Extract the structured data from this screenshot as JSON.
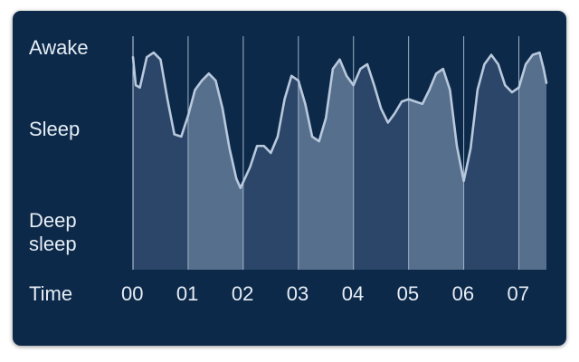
{
  "chart_data": {
    "type": "area",
    "x_label": "Time",
    "x": [
      0,
      0.05,
      0.125,
      0.25,
      0.375,
      0.5,
      0.625,
      0.75,
      0.875,
      1,
      1.125,
      1.25,
      1.375,
      1.5,
      1.625,
      1.75,
      1.875,
      1.95,
      2.125,
      2.25,
      2.375,
      2.5,
      2.625,
      2.75,
      2.875,
      3,
      3.125,
      3.25,
      3.375,
      3.5,
      3.625,
      3.75,
      3.875,
      4,
      4.125,
      4.25,
      4.375,
      4.5,
      4.625,
      4.75,
      4.875,
      5,
      5.125,
      5.25,
      5.375,
      5.5,
      5.625,
      5.75,
      5.875,
      6,
      6.125,
      6.25,
      6.375,
      6.5,
      6.625,
      6.75,
      6.875,
      7,
      7.125,
      7.25,
      7.375,
      7.45,
      7.5
    ],
    "values": [
      91,
      79,
      78,
      91,
      93,
      90,
      73,
      58,
      57,
      66,
      77,
      81,
      84,
      81,
      69,
      52,
      39,
      35,
      44,
      53,
      53,
      50,
      57,
      73,
      83,
      81,
      71,
      57,
      55,
      65,
      86,
      90,
      83,
      79,
      86,
      88,
      79,
      69,
      63,
      67,
      72,
      73,
      72,
      71,
      77,
      84,
      86,
      77,
      53,
      38,
      52,
      77,
      88,
      92,
      88,
      79,
      76,
      78,
      88,
      92,
      93,
      86,
      80
    ],
    "color": "#b9c9dd",
    "xlim": [
      0,
      7.5
    ],
    "xticks": [
      {
        "value": 0,
        "label": "00"
      },
      {
        "value": 1,
        "label": "01"
      },
      {
        "value": 2,
        "label": "02"
      },
      {
        "value": 3,
        "label": "03"
      },
      {
        "value": 4,
        "label": "04"
      },
      {
        "value": 5,
        "label": "05"
      },
      {
        "value": 6,
        "label": "06"
      },
      {
        "value": 7,
        "label": "07"
      }
    ],
    "ylim": [
      0,
      100
    ],
    "yticks": [
      {
        "value": 95,
        "label": "Awake"
      },
      {
        "value": 60,
        "label": "Sleep"
      },
      {
        "value": 16,
        "label": "Deep sleep"
      }
    ],
    "grid": true
  }
}
